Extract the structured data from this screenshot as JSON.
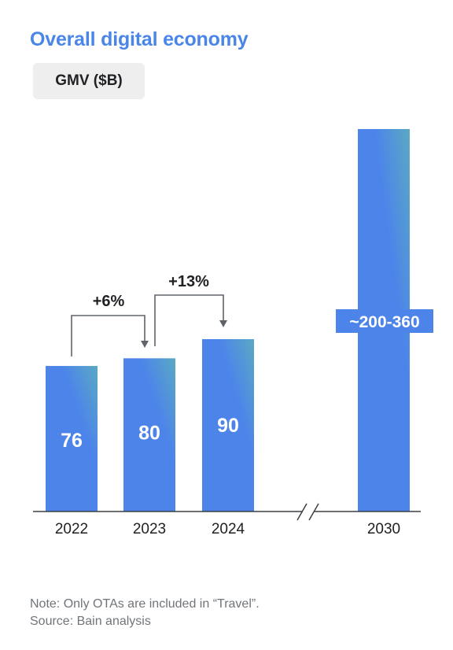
{
  "title": "Overall digital economy",
  "unit_label": "GMV ($B)",
  "note": "Note: Only OTAs are included in “Travel”.",
  "source": "Source: Bain analysis",
  "colors": {
    "title": "#4a86e8",
    "bar_top": "#5aa9c4",
    "bar_bottom": "#4c84ea",
    "axis": "#3c4043",
    "arrow": "#5f6368"
  },
  "chart_data": {
    "type": "bar",
    "categories": [
      "2022",
      "2023",
      "2024",
      "2030"
    ],
    "values": [
      76,
      80,
      90,
      280
    ],
    "value_labels": [
      "76",
      "80",
      "90",
      "~200-360"
    ],
    "range_2030": [
      200,
      360
    ],
    "axis_break_between": [
      "2024",
      "2030"
    ],
    "growth_annotations": [
      {
        "from": "2022",
        "to": "2023",
        "label": "+6%"
      },
      {
        "from": "2023",
        "to": "2024",
        "label": "+13%"
      }
    ],
    "ylim": [
      0,
      300
    ],
    "title": "Overall digital economy",
    "ylabel": "GMV ($B)",
    "grid": false
  }
}
